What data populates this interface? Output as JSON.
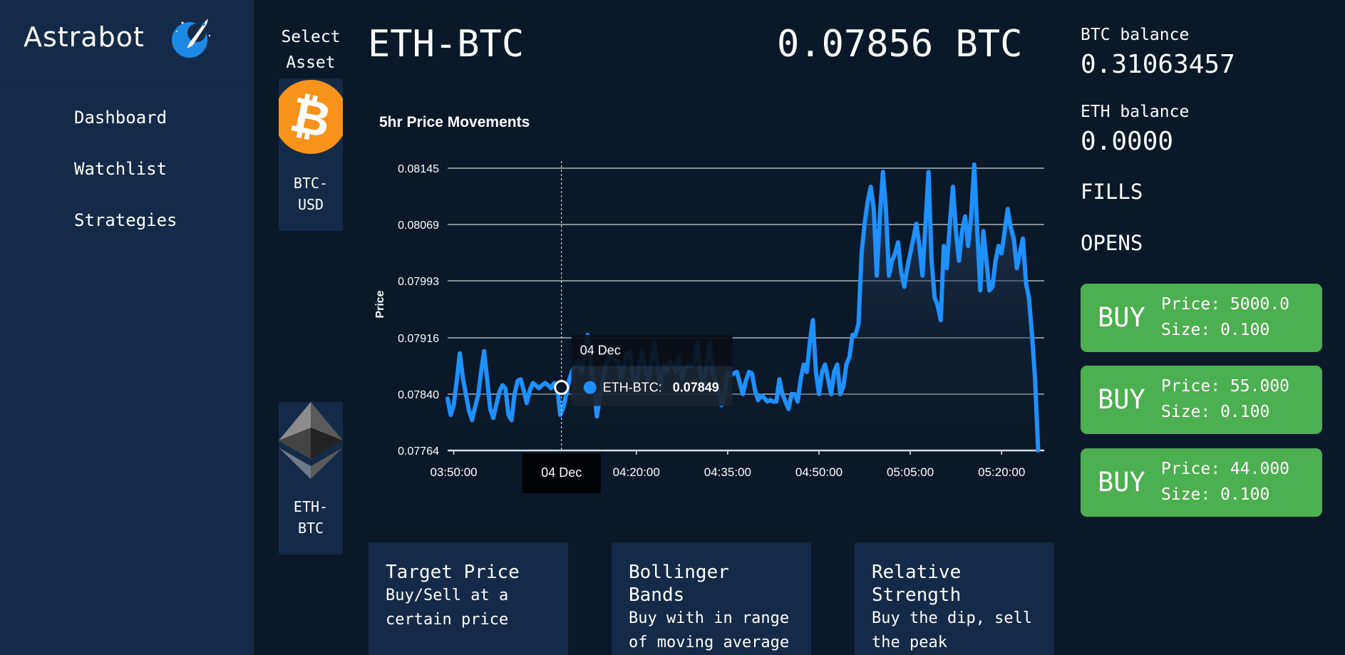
{
  "brand": {
    "name": "Astrabot",
    "logo_icon": "rocket-moon-icon",
    "accent": "#1e88e5"
  },
  "sidebar": {
    "items": [
      {
        "label": "Dashboard"
      },
      {
        "label": "Watchlist"
      },
      {
        "label": "Strategies"
      }
    ]
  },
  "asset_selector": {
    "title": "Select Asset",
    "assets": [
      {
        "label": "BTC-USD",
        "line1": "BTC-",
        "line2": "USD",
        "icon": "bitcoin-icon",
        "color": "#f7931a"
      },
      {
        "label": "ETH-BTC",
        "line1": "ETH-",
        "line2": "BTC",
        "icon": "ethereum-icon",
        "color": "#8c8c8c"
      }
    ]
  },
  "header": {
    "pair": "ETH-BTC",
    "price": "0.07856 BTC"
  },
  "chart_data": {
    "type": "area",
    "title": "5hr Price Movements",
    "ylabel": "Price",
    "xlabel": "",
    "line_color": "#1e90ff",
    "y_ticks": [
      "0.08145",
      "0.08069",
      "0.07993",
      "0.07916",
      "0.07840",
      "0.07764"
    ],
    "y_tick_values": [
      0.08145,
      0.08069,
      0.07993,
      0.07916,
      0.0784,
      0.07764
    ],
    "ylim": [
      0.07764,
      0.08145
    ],
    "x_ticks": [
      "03:50:00",
      "04:20:00",
      "04:35:00",
      "04:50:00",
      "05:05:00",
      "05:20:00"
    ],
    "x_tick_minutes": [
      230,
      260,
      275,
      290,
      305,
      320
    ],
    "xlim": [
      229,
      327
    ],
    "grid": true,
    "series": [
      {
        "name": "ETH-BTC",
        "points": [
          [
            229.0,
            0.07834
          ],
          [
            229.5,
            0.07812
          ],
          [
            230.0,
            0.07825
          ],
          [
            230.5,
            0.07858
          ],
          [
            231.0,
            0.07895
          ],
          [
            231.5,
            0.07862
          ],
          [
            232.0,
            0.0784
          ],
          [
            232.5,
            0.07818
          ],
          [
            233.0,
            0.07805
          ],
          [
            233.5,
            0.07822
          ],
          [
            234.0,
            0.07838
          ],
          [
            234.5,
            0.0787
          ],
          [
            235.0,
            0.07898
          ],
          [
            235.5,
            0.0786
          ],
          [
            236.0,
            0.0782
          ],
          [
            236.5,
            0.07808
          ],
          [
            237.0,
            0.07826
          ],
          [
            237.5,
            0.07843
          ],
          [
            238.0,
            0.07852
          ],
          [
            238.5,
            0.07848
          ],
          [
            239.0,
            0.07812
          ],
          [
            239.5,
            0.07805
          ],
          [
            240.0,
            0.0784
          ],
          [
            240.5,
            0.07858
          ],
          [
            241.0,
            0.0786
          ],
          [
            241.5,
            0.07845
          ],
          [
            242.0,
            0.07828
          ],
          [
            242.5,
            0.07845
          ],
          [
            243.0,
            0.07855
          ],
          [
            243.5,
            0.07852
          ],
          [
            244.0,
            0.07848
          ],
          [
            244.5,
            0.07852
          ],
          [
            245.0,
            0.07855
          ],
          [
            245.5,
            0.07852
          ],
          [
            246.0,
            0.07848
          ],
          [
            246.5,
            0.07855
          ],
          [
            247.0,
            0.0785
          ],
          [
            247.5,
            0.07812
          ],
          [
            248.0,
            0.07822
          ],
          [
            248.5,
            0.0784
          ],
          [
            249.0,
            0.0786
          ],
          [
            249.5,
            0.07872
          ],
          [
            250.0,
            0.07878
          ],
          [
            250.5,
            0.07885
          ],
          [
            251.0,
            0.0787
          ],
          [
            251.5,
            0.07895
          ],
          [
            252.0,
            0.0792
          ],
          [
            252.5,
            0.0788
          ],
          [
            253.0,
            0.07855
          ],
          [
            253.5,
            0.0781
          ],
          [
            254.0,
            0.07835
          ],
          [
            254.5,
            0.0786
          ],
          [
            255.0,
            0.0788
          ],
          [
            255.5,
            0.0789
          ],
          [
            256.0,
            0.0789
          ],
          [
            256.5,
            0.07885
          ],
          [
            257.0,
            0.07885
          ],
          [
            257.5,
            0.0786
          ],
          [
            258.0,
            0.07878
          ],
          [
            258.5,
            0.07895
          ],
          [
            259.0,
            0.07898
          ],
          [
            259.5,
            0.0786
          ],
          [
            260.0,
            0.0785
          ],
          [
            260.5,
            0.0788
          ],
          [
            261.0,
            0.07898
          ],
          [
            261.5,
            0.0787
          ],
          [
            262.0,
            0.0786
          ],
          [
            262.5,
            0.07885
          ],
          [
            263.0,
            0.0791
          ],
          [
            263.5,
            0.07875
          ],
          [
            264.0,
            0.0785
          ],
          [
            264.5,
            0.0788
          ],
          [
            265.0,
            0.0787
          ],
          [
            265.5,
            0.07885
          ],
          [
            266.0,
            0.0788
          ],
          [
            266.5,
            0.0787
          ],
          [
            267.0,
            0.0789
          ],
          [
            267.5,
            0.0786
          ],
          [
            268.0,
            0.07875
          ],
          [
            268.5,
            0.0788
          ],
          [
            269.0,
            0.07878
          ],
          [
            269.5,
            0.07882
          ],
          [
            270.0,
            0.0791
          ],
          [
            270.5,
            0.0787
          ],
          [
            271.0,
            0.0785
          ],
          [
            271.5,
            0.07875
          ],
          [
            272.0,
            0.0791
          ],
          [
            272.5,
            0.0787
          ],
          [
            273.0,
            0.07858
          ],
          [
            273.5,
            0.07845
          ],
          [
            274.0,
            0.07825
          ],
          [
            274.5,
            0.0784
          ],
          [
            275.0,
            0.0787
          ],
          [
            275.5,
            0.07865
          ],
          [
            276.0,
            0.07868
          ],
          [
            276.5,
            0.0787
          ],
          [
            277.0,
            0.07855
          ],
          [
            277.5,
            0.0784
          ],
          [
            278.0,
            0.07858
          ],
          [
            278.5,
            0.0787
          ],
          [
            279.0,
            0.07868
          ],
          [
            279.5,
            0.07845
          ],
          [
            280.0,
            0.07832
          ],
          [
            280.5,
            0.07838
          ],
          [
            281.0,
            0.07835
          ],
          [
            281.5,
            0.0783
          ],
          [
            282.0,
            0.07832
          ],
          [
            282.5,
            0.0783
          ],
          [
            283.0,
            0.0783
          ],
          [
            283.5,
            0.0786
          ],
          [
            284.0,
            0.0784
          ],
          [
            284.5,
            0.0783
          ],
          [
            285.0,
            0.0782
          ],
          [
            285.5,
            0.0784
          ],
          [
            286.0,
            0.0784
          ],
          [
            286.5,
            0.0783
          ],
          [
            287.0,
            0.0786
          ],
          [
            287.5,
            0.0788
          ],
          [
            288.0,
            0.0787
          ],
          [
            288.5,
            0.0791
          ],
          [
            289.0,
            0.0794
          ],
          [
            289.5,
            0.0787
          ],
          [
            290.0,
            0.0784
          ],
          [
            290.5,
            0.0787
          ],
          [
            291.0,
            0.0788
          ],
          [
            291.5,
            0.0786
          ],
          [
            292.0,
            0.0784
          ],
          [
            292.5,
            0.0787
          ],
          [
            293.0,
            0.0788
          ],
          [
            293.5,
            0.0784
          ],
          [
            294.0,
            0.0785
          ],
          [
            294.5,
            0.0788
          ],
          [
            295.0,
            0.0789
          ],
          [
            295.5,
            0.0792
          ],
          [
            296.0,
            0.0792
          ],
          [
            296.5,
            0.07935
          ],
          [
            297.0,
            0.0803
          ],
          [
            297.5,
            0.0807
          ],
          [
            298.0,
            0.081
          ],
          [
            298.5,
            0.0812
          ],
          [
            299.0,
            0.0809
          ],
          [
            299.5,
            0.08
          ],
          [
            300.0,
            0.0808
          ],
          [
            300.5,
            0.0814
          ],
          [
            301.0,
            0.0809
          ],
          [
            301.5,
            0.08
          ],
          [
            302.0,
            0.0802
          ],
          [
            302.5,
            0.0803
          ],
          [
            303.0,
            0.08045
          ],
          [
            303.5,
            0.08005
          ],
          [
            304.0,
            0.07985
          ],
          [
            304.5,
            0.0801
          ],
          [
            305.0,
            0.0803
          ],
          [
            305.5,
            0.0805
          ],
          [
            306.0,
            0.0807
          ],
          [
            306.5,
            0.0804
          ],
          [
            307.0,
            0.08
          ],
          [
            307.5,
            0.0807
          ],
          [
            308.0,
            0.0814
          ],
          [
            308.5,
            0.0802
          ],
          [
            309.0,
            0.0797
          ],
          [
            309.5,
            0.0796
          ],
          [
            310.0,
            0.0794
          ],
          [
            310.5,
            0.0804
          ],
          [
            311.0,
            0.0801
          ],
          [
            311.5,
            0.0807
          ],
          [
            312.0,
            0.0812
          ],
          [
            312.5,
            0.0806
          ],
          [
            313.0,
            0.0802
          ],
          [
            313.5,
            0.0806
          ],
          [
            314.0,
            0.0808
          ],
          [
            314.5,
            0.0804
          ],
          [
            315.0,
            0.0808
          ],
          [
            315.5,
            0.0815
          ],
          [
            316.0,
            0.0806
          ],
          [
            316.5,
            0.0798
          ],
          [
            317.0,
            0.0806
          ],
          [
            317.5,
            0.0802
          ],
          [
            318.0,
            0.0798
          ],
          [
            318.5,
            0.07985
          ],
          [
            319.0,
            0.0802
          ],
          [
            319.5,
            0.0804
          ],
          [
            320.0,
            0.0803
          ],
          [
            320.5,
            0.0806
          ],
          [
            321.0,
            0.0809
          ],
          [
            321.5,
            0.08065
          ],
          [
            322.0,
            0.0805
          ],
          [
            322.5,
            0.0801
          ],
          [
            323.0,
            0.0803
          ],
          [
            323.5,
            0.0805
          ],
          [
            324.0,
            0.0799
          ],
          [
            324.5,
            0.0797
          ],
          [
            325.0,
            0.0792
          ],
          [
            325.5,
            0.0786
          ],
          [
            326.0,
            0.07764
          ]
        ]
      }
    ],
    "tooltip": {
      "date": "04 Dec",
      "series_label": "ETH-BTC:",
      "value": "0.07849",
      "value_num": 0.07849,
      "x_minute": 247.7,
      "x_axis_label": "04 Dec"
    }
  },
  "strategies": [
    {
      "title": "Target Price",
      "desc": "Buy/Sell at a certain price"
    },
    {
      "title": "Bollinger Bands",
      "desc": "Buy with in range of moving average"
    },
    {
      "title": "Relative Strength",
      "desc": "Buy the dip, sell the peak"
    }
  ],
  "balances": {
    "btc_label": "BTC balance",
    "btc_value": "0.31063457",
    "eth_label": "ETH balance",
    "eth_value": "0.0000"
  },
  "sections": {
    "fills": "FILLS",
    "opens": "OPENS"
  },
  "orders": [
    {
      "side": "BUY",
      "price": "Price: 5000.0",
      "size": "Size: 0.100"
    },
    {
      "side": "BUY",
      "price": "Price: 55.000",
      "size": "Size: 0.100"
    },
    {
      "side": "BUY",
      "price": "Price: 44.000",
      "size": "Size: 0.100"
    }
  ],
  "colors": {
    "background": "#0a1829",
    "panel": "#132b48",
    "buy": "#4caf50"
  }
}
